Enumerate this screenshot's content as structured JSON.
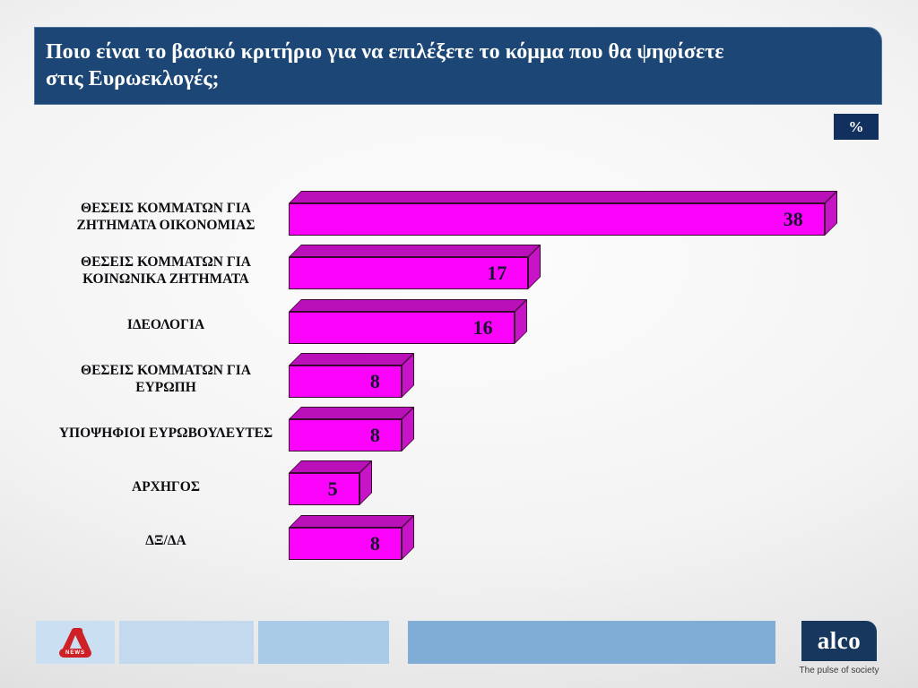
{
  "slide": {
    "title_line1": "Ποιο είναι το βασικό κριτήριο για να επιλέξετε το κόμμα που θα ψηφίσετε",
    "title_line2": "στις Ευρωεκλογές;",
    "unit_badge": "%"
  },
  "chart_data": {
    "type": "bar",
    "orientation": "horizontal",
    "title": "Ποιο είναι το βασικό κριτήριο για να επιλέξετε το κόμμα που θα ψηφίσετε στις Ευρωεκλογές;",
    "categories": [
      "ΘΕΣΕΙΣ ΚΟΜΜΑΤΩΝ ΓΙΑ ΖΗΤΗΜΑΤΑ ΟΙΚΟΝΟΜΙΑΣ",
      "ΘΕΣΕΙΣ ΚΟΜΜΑΤΩΝ ΓΙΑ ΚΟΙΝΩΝΙΚΑ ΖΗΤΗΜΑΤΑ",
      "ΙΔΕΟΛΟΓΙΑ",
      "ΘΕΣΕΙΣ ΚΟΜΜΑΤΩΝ ΓΙΑ ΕΥΡΩΠΗ",
      "ΥΠΟΨΗΦΙΟΙ ΕΥΡΩΒΟΥΛΕΥΤΕΣ",
      "ΑΡΧΗΓΟΣ",
      "ΔΞ/ΔΑ"
    ],
    "values": [
      38,
      17,
      16,
      8,
      8,
      5,
      8
    ],
    "value_unit": "%",
    "xlim": [
      0,
      40
    ],
    "grid": false,
    "legend": false,
    "bar_color_front": "#fb02fb",
    "bar_color_top": "#ba10ba",
    "bar_color_side": "#c714c7"
  },
  "footer": {
    "alpha_logo": {
      "letter": "A",
      "news_label": "NEWS"
    },
    "alco_logo": {
      "text": "alco",
      "tagline": "The pulse of society"
    }
  },
  "colors": {
    "title_bg": "#1c4675",
    "badge_bg": "#12305e",
    "alco_bg": "#17375e",
    "footer_blues": [
      "#cadff1",
      "#c3d9ee",
      "#a9cbe7",
      "#7fadd6"
    ]
  }
}
